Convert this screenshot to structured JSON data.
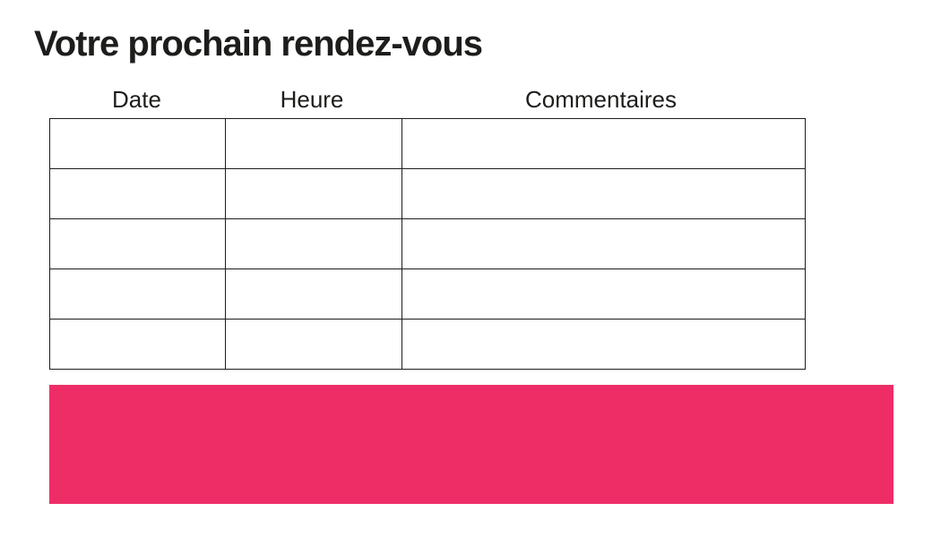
{
  "page": {
    "title": "Votre prochain rendez-vous"
  },
  "table": {
    "columns": [
      {
        "key": "date",
        "label": "Date"
      },
      {
        "key": "heure",
        "label": "Heure"
      },
      {
        "key": "commentaires",
        "label": "Commentaires"
      }
    ],
    "row_count": 5,
    "cells_empty": true
  },
  "colors": {
    "accent_pink": "#EE2D67",
    "text": "#1D1D1B",
    "table_border": "#1D1D1B",
    "background": "#FFFFFF"
  }
}
